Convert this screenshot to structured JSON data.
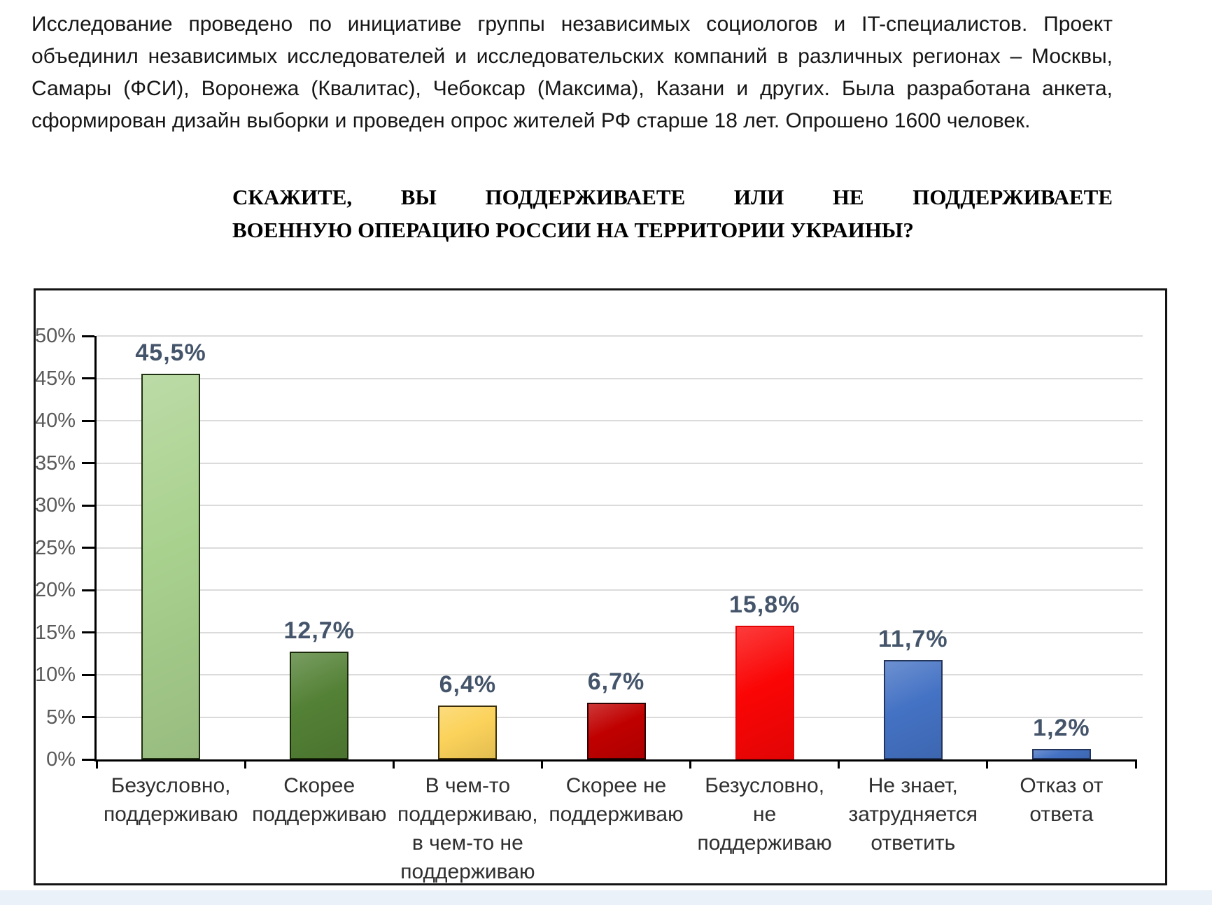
{
  "intro": {
    "text": "Исследование проведено по инициативе группы независимых социологов и IT-специалистов. Проект объединил независимых исследователей и исследовательских компаний в различных регионах – Москвы, Самары (ФСИ), Воронежа (Квалитас), Чебоксар (Максима), Казани и других. Была разработана анкета, сформирован дизайн выборки и проведен опрос жителей РФ старше 18 лет. Опрошено 1600 человек."
  },
  "question": {
    "line1": "СКАЖИТЕ, ВЫ ПОДДЕРЖИВАЕТЕ ИЛИ НЕ ПОДДЕРЖИВАЕТЕ",
    "line2": "ВОЕННУЮ ОПЕРАЦИЮ РОССИИ НА ТЕРРИТОРИИ УКРАИНЫ?"
  },
  "chart_data": {
    "type": "bar",
    "title": "СКАЖИТЕ, ВЫ ПОДДЕРЖИВАЕТЕ ИЛИ НЕ ПОДДЕРЖИВАЕТЕ ВОЕННУЮ ОПЕРАЦИЮ РОССИИ НА ТЕРРИТОРИИ УКРАИНЫ?",
    "categories": [
      "Безусловно,\nподдерживаю",
      "Скорее\nподдерживаю",
      "В чем-то\nподдерживаю,\nв чем-то не\nподдерживаю",
      "Скорее не\nподдерживаю",
      "Безусловно,\nне\nподдерживаю",
      "Не знает,\nзатрудняется\nответить",
      "Отказ от\nответа"
    ],
    "values": [
      45.5,
      12.7,
      6.4,
      6.7,
      15.8,
      11.7,
      1.2
    ],
    "value_labels": [
      "45,5%",
      "12,7%",
      "6,4%",
      "6,7%",
      "15,8%",
      "11,7%",
      "1,2%"
    ],
    "bar_colors": [
      "#A9D18E",
      "#538135",
      "#FBD25A",
      "#C00000",
      "#FB0505",
      "#4472C4",
      "#4472C4"
    ],
    "bar_border_colors": [
      "#203012",
      "#1b2a0b",
      "#3c2f09",
      "#2d0202",
      "#e20404",
      "#24355c",
      "#24355c"
    ],
    "y_ticks": [
      {
        "value": 0,
        "label": "0%"
      },
      {
        "value": 5,
        "label": "5%"
      },
      {
        "value": 10,
        "label": "10%"
      },
      {
        "value": 15,
        "label": "15%"
      },
      {
        "value": 20,
        "label": "20%"
      },
      {
        "value": 25,
        "label": "25%"
      },
      {
        "value": 30,
        "label": "30%"
      },
      {
        "value": 35,
        "label": "35%"
      },
      {
        "value": 40,
        "label": "40%"
      },
      {
        "value": 45,
        "label": "45%"
      },
      {
        "value": 50,
        "label": "50%"
      }
    ],
    "ylim": [
      0,
      50
    ],
    "grid": true,
    "legend": false,
    "xlabel": "",
    "ylabel": ""
  }
}
